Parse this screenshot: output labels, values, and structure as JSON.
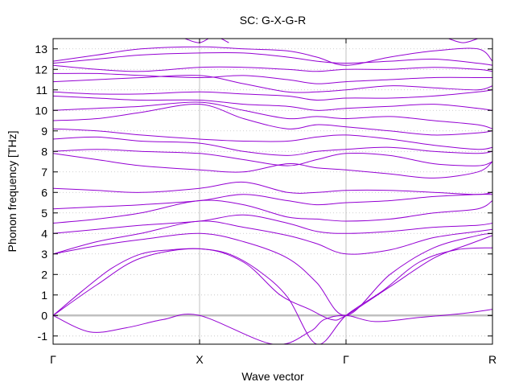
{
  "chart_data": {
    "type": "line",
    "title": "SC: G-X-G-R",
    "xlabel": "Wave vector",
    "ylabel": "Phonon frequency [THz]",
    "ylim": [
      -1.4,
      13.5
    ],
    "xlim": [
      0,
      3
    ],
    "xticks": [
      {
        "x": 0,
        "label": "Γ"
      },
      {
        "x": 1,
        "label": "X"
      },
      {
        "x": 2,
        "label": "Γ"
      },
      {
        "x": 3,
        "label": "R"
      }
    ],
    "yticks": [
      -1,
      0,
      1,
      2,
      3,
      4,
      5,
      6,
      7,
      8,
      9,
      10,
      11,
      12,
      13
    ],
    "grid": true,
    "line_color": "#9400d3",
    "series": [
      {
        "x": [
          0,
          0.25,
          0.5,
          0.75,
          1,
          1.5,
          1.75,
          1.85,
          2,
          2.2,
          2.5,
          2.8,
          3
        ],
        "values": [
          0,
          -0.8,
          -0.6,
          -0.2,
          0,
          -1.4,
          -0.8,
          -0.2,
          0,
          -0.3,
          -0.1,
          0.1,
          0.3
        ]
      },
      {
        "x": [
          0,
          0.2,
          0.4,
          0.6,
          0.8,
          1,
          1.2,
          1.4,
          1.6,
          1.8,
          2,
          2.25,
          2.5,
          2.75,
          3
        ],
        "values": [
          0,
          1.2,
          2.3,
          3.0,
          3.2,
          3.25,
          3.0,
          2.2,
          0.9,
          -1.4,
          0,
          1.2,
          2.6,
          3.2,
          3.3
        ]
      },
      {
        "x": [
          0,
          0.3,
          0.6,
          1,
          1.3,
          1.55,
          1.75,
          1.9,
          2,
          2.3,
          2.6,
          2.85,
          3
        ],
        "values": [
          0,
          1.5,
          2.8,
          3.25,
          2.6,
          1.0,
          0.3,
          -0.2,
          0,
          1.4,
          2.8,
          3.5,
          3.9
        ]
      },
      {
        "x": [
          0,
          0.3,
          0.6,
          1,
          1.3,
          1.6,
          1.8,
          2,
          2.3,
          2.6,
          2.9,
          3
        ],
        "values": [
          3.0,
          3.4,
          3.7,
          4.0,
          3.6,
          2.8,
          1.6,
          0,
          2.0,
          3.3,
          3.9,
          4.0
        ]
      },
      {
        "x": [
          0,
          0.3,
          0.6,
          1,
          1.3,
          1.6,
          1.8,
          2,
          2.3,
          2.6,
          2.9,
          3
        ],
        "values": [
          3.0,
          3.6,
          4.0,
          4.6,
          4.3,
          3.9,
          3.5,
          3.0,
          3.2,
          3.8,
          4.1,
          4.2
        ]
      },
      {
        "x": [
          0,
          0.3,
          0.6,
          1,
          1.3,
          1.6,
          1.8,
          2,
          2.3,
          2.6,
          2.9,
          3
        ],
        "values": [
          4.0,
          4.2,
          4.4,
          4.6,
          4.9,
          4.5,
          4.1,
          4.0,
          4.1,
          4.3,
          4.4,
          4.5
        ]
      },
      {
        "x": [
          0,
          0.3,
          0.6,
          1,
          1.3,
          1.6,
          1.8,
          2,
          2.3,
          2.6,
          2.9,
          3
        ],
        "values": [
          4.5,
          4.7,
          5.0,
          5.6,
          5.4,
          4.8,
          4.7,
          4.6,
          4.7,
          5.0,
          5.2,
          5.6
        ]
      },
      {
        "x": [
          0,
          0.3,
          0.6,
          1,
          1.3,
          1.6,
          1.8,
          2,
          2.3,
          2.6,
          2.9,
          3
        ],
        "values": [
          5.2,
          5.3,
          5.4,
          5.6,
          5.9,
          5.6,
          5.4,
          5.5,
          5.6,
          5.8,
          5.9,
          5.9
        ]
      },
      {
        "x": [
          0,
          0.3,
          0.6,
          1,
          1.3,
          1.6,
          1.8,
          2,
          2.3,
          2.6,
          2.9,
          3
        ],
        "values": [
          6.2,
          6.1,
          6.0,
          6.2,
          6.5,
          6.0,
          6.0,
          6.1,
          6.1,
          6.0,
          5.9,
          6.0
        ]
      },
      {
        "x": [
          0,
          0.3,
          0.6,
          1,
          1.3,
          1.6,
          1.8,
          2,
          2.3,
          2.6,
          2.9,
          3
        ],
        "values": [
          7.9,
          7.6,
          7.3,
          7.1,
          7.0,
          7.4,
          7.2,
          7.1,
          6.9,
          6.7,
          7.0,
          7.5
        ]
      },
      {
        "x": [
          0,
          0.3,
          0.6,
          1,
          1.3,
          1.6,
          1.8,
          2,
          2.3,
          2.6,
          2.9,
          3
        ],
        "values": [
          8.0,
          8.1,
          8.0,
          7.9,
          7.6,
          7.3,
          7.6,
          7.9,
          7.8,
          7.4,
          7.3,
          7.5
        ]
      },
      {
        "x": [
          0,
          0.3,
          0.6,
          1,
          1.3,
          1.6,
          1.8,
          2,
          2.3,
          2.6,
          2.9,
          3
        ],
        "values": [
          8.6,
          8.7,
          8.5,
          8.4,
          8.0,
          7.8,
          8.0,
          8.1,
          8.2,
          8.0,
          7.9,
          8.0
        ]
      },
      {
        "x": [
          0,
          0.3,
          0.6,
          1,
          1.3,
          1.6,
          1.8,
          2,
          2.3,
          2.6,
          2.9,
          3
        ],
        "values": [
          9.1,
          9.0,
          8.8,
          8.6,
          8.5,
          8.5,
          8.7,
          8.8,
          8.6,
          8.3,
          8.1,
          8.2
        ]
      },
      {
        "x": [
          0,
          0.3,
          0.6,
          1,
          1.3,
          1.6,
          1.8,
          2,
          2.3,
          2.6,
          2.9,
          3
        ],
        "values": [
          9.5,
          9.6,
          9.9,
          10.3,
          9.6,
          9.1,
          9.3,
          9.2,
          9.0,
          8.8,
          8.9,
          9.0
        ]
      },
      {
        "x": [
          0,
          0.3,
          0.6,
          1,
          1.3,
          1.6,
          1.8,
          2,
          2.3,
          2.6,
          2.9,
          3
        ],
        "values": [
          10.0,
          10.1,
          10.2,
          10.4,
          10.0,
          9.6,
          9.7,
          9.6,
          9.7,
          9.5,
          9.3,
          9.1
        ]
      },
      {
        "x": [
          0,
          0.3,
          0.6,
          1,
          1.3,
          1.6,
          1.8,
          2,
          2.3,
          2.6,
          2.9,
          3
        ],
        "values": [
          10.7,
          10.6,
          10.5,
          10.5,
          10.3,
          10.2,
          10.0,
          10.1,
          10.2,
          10.3,
          10.1,
          10.0
        ]
      },
      {
        "x": [
          0,
          0.3,
          0.6,
          1,
          1.3,
          1.6,
          1.8,
          2,
          2.3,
          2.6,
          2.9,
          3
        ],
        "values": [
          10.9,
          10.8,
          10.8,
          10.9,
          10.8,
          10.7,
          10.5,
          10.6,
          10.6,
          10.7,
          10.9,
          11.0
        ]
      },
      {
        "x": [
          0,
          0.3,
          0.6,
          1,
          1.3,
          1.6,
          1.8,
          2,
          2.3,
          2.6,
          2.9,
          3
        ],
        "values": [
          11.4,
          11.5,
          11.6,
          11.7,
          11.3,
          10.9,
          10.9,
          11.0,
          11.2,
          11.1,
          11.0,
          11.2
        ]
      },
      {
        "x": [
          0,
          0.3,
          0.6,
          1,
          1.3,
          1.6,
          1.8,
          2,
          2.3,
          2.6,
          2.9,
          3
        ],
        "values": [
          11.8,
          11.8,
          11.7,
          11.6,
          11.7,
          11.5,
          11.3,
          11.4,
          11.5,
          11.6,
          11.6,
          11.6
        ]
      },
      {
        "x": [
          0,
          0.3,
          0.6,
          1,
          1.3,
          1.6,
          1.8,
          2,
          2.3,
          2.6,
          2.9,
          3
        ],
        "values": [
          12.2,
          12.0,
          11.9,
          12.1,
          12.1,
          12.0,
          11.9,
          12.0,
          12.0,
          12.1,
          12.0,
          11.9
        ]
      },
      {
        "x": [
          0,
          0.3,
          0.6,
          1,
          1.3,
          1.6,
          1.8,
          2,
          2.3,
          2.6,
          2.9,
          3
        ],
        "values": [
          12.3,
          12.5,
          12.7,
          12.8,
          12.8,
          12.6,
          12.4,
          12.3,
          12.4,
          12.5,
          12.3,
          12.2
        ]
      },
      {
        "x": [
          0,
          0.3,
          0.6,
          1,
          1.3,
          1.6,
          1.8,
          2,
          2.3,
          2.6,
          2.9,
          3
        ],
        "values": [
          12.4,
          12.7,
          13.0,
          13.1,
          13.0,
          12.9,
          12.6,
          12.2,
          12.6,
          12.9,
          13.0,
          12.4
        ]
      },
      {
        "x": [
          0.9,
          1,
          1.1,
          1.2
        ],
        "values": [
          13.5,
          13.3,
          13.6,
          13.3
        ]
      },
      {
        "x": [
          2.7,
          2.8,
          2.9
        ],
        "values": [
          13.5,
          13.3,
          13.5
        ]
      }
    ]
  }
}
